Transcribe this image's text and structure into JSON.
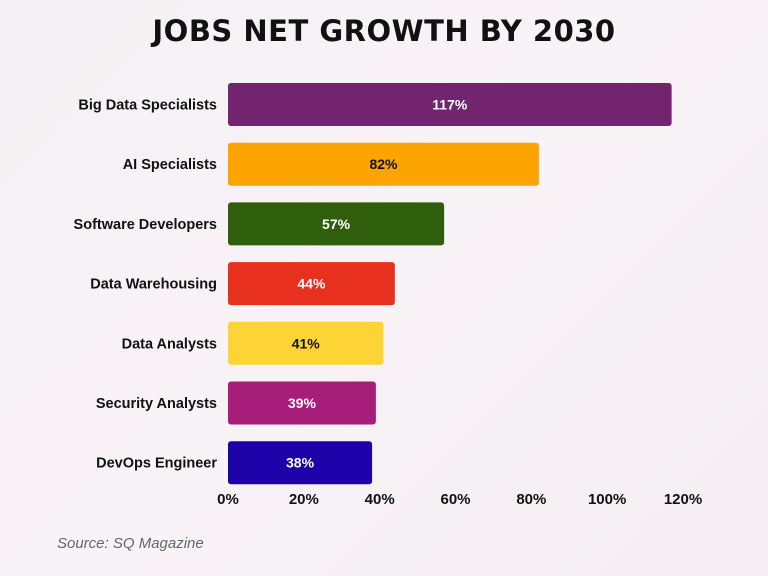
{
  "chart_data": {
    "type": "bar",
    "orientation": "horizontal",
    "title": "JOBS NET GROWTH BY 2030",
    "categories": [
      "Big Data Specialists",
      "AI Specialists",
      "Software Developers",
      "Data Warehousing",
      "Data Analysts",
      "Security Analysts",
      "DevOps Engineer"
    ],
    "values": [
      117,
      82,
      57,
      44,
      41,
      39,
      38
    ],
    "data_labels": [
      "117%",
      "82%",
      "57%",
      "44%",
      "41%",
      "39%",
      "38%"
    ],
    "colors": [
      "#72246e",
      "#fca400",
      "#2f5e0c",
      "#e8301f",
      "#fdd435",
      "#a61d7a",
      "#1c02a8"
    ],
    "label_colors": [
      "#ffffff",
      "#111111",
      "#ffffff",
      "#ffffff",
      "#111111",
      "#ffffff",
      "#ffffff"
    ],
    "xlim": [
      0,
      120
    ],
    "xticks": [
      0,
      20,
      40,
      60,
      80,
      100,
      120
    ],
    "xtick_labels": [
      "0%",
      "20%",
      "40%",
      "60%",
      "80%",
      "100%",
      "120%"
    ],
    "grid": false,
    "source": "Source: SQ Magazine"
  }
}
